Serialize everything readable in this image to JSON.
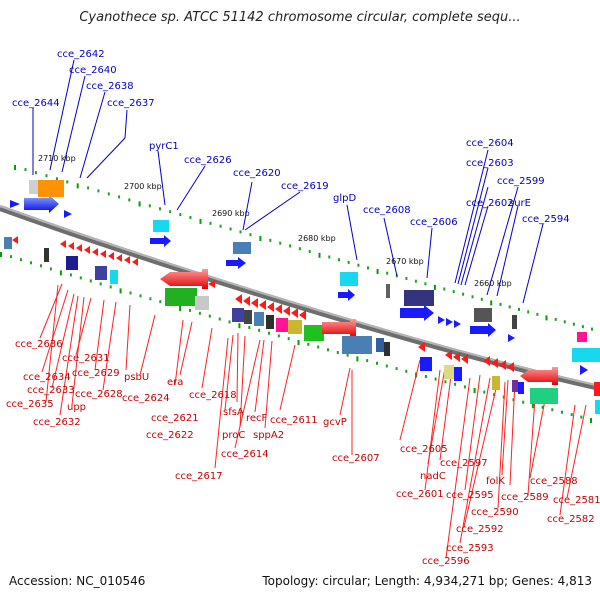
{
  "title": "Cyanothece sp. ATCC 51142 chromosome circular, complete sequ...",
  "accession": "Accession: NC_010546",
  "topology": "Topology: circular; Length: 4,934,271 bp; Genes: 4,813",
  "kbp_labels": [
    "2710 kbp",
    "2700 kbp",
    "2690 kbp",
    "2680 kbp",
    "2670 kbp",
    "2660 kbp"
  ],
  "top_labels": [
    "cce_2642",
    "cce_2640",
    "cce_2638",
    "cce_2644",
    "cce_2637",
    "pyrC1",
    "cce_2626",
    "cce_2620",
    "cce_2619",
    "glpD",
    "cce_2608",
    "cce_2606",
    "cce_2604",
    "cce_2603",
    "cce_2599",
    "cce_2602",
    "surE",
    "cce_2594"
  ],
  "bottom_labels": [
    "cce_2636",
    "cce_2631",
    "cce_2634",
    "cce_2629",
    "cce_2633",
    "cce_2628",
    "cce_2635",
    "upp",
    "cce_2632",
    "psbU",
    "era",
    "cce_2624",
    "cce_2618",
    "cce_2621",
    "sfsA",
    "recF",
    "cce_2611",
    "cce_2622",
    "proC",
    "sppA2",
    "cce_2614",
    "cce_2617",
    "gcvP",
    "cce_2607",
    "cce_2605",
    "nadC",
    "cce_2597",
    "cce_2601",
    "cce_2595",
    "folK",
    "cce_2588",
    "cce_2589",
    "cce_2590",
    "cce_2581",
    "cce_2582",
    "cce_2592",
    "cce_2593",
    "cce_2596"
  ],
  "colors": {
    "top_label": "#0000c8",
    "bottom_label": "#c80000",
    "forward_gene": "#1a1aff",
    "reverse_gene": "#ff1a1a",
    "backbone": "#888888"
  }
}
